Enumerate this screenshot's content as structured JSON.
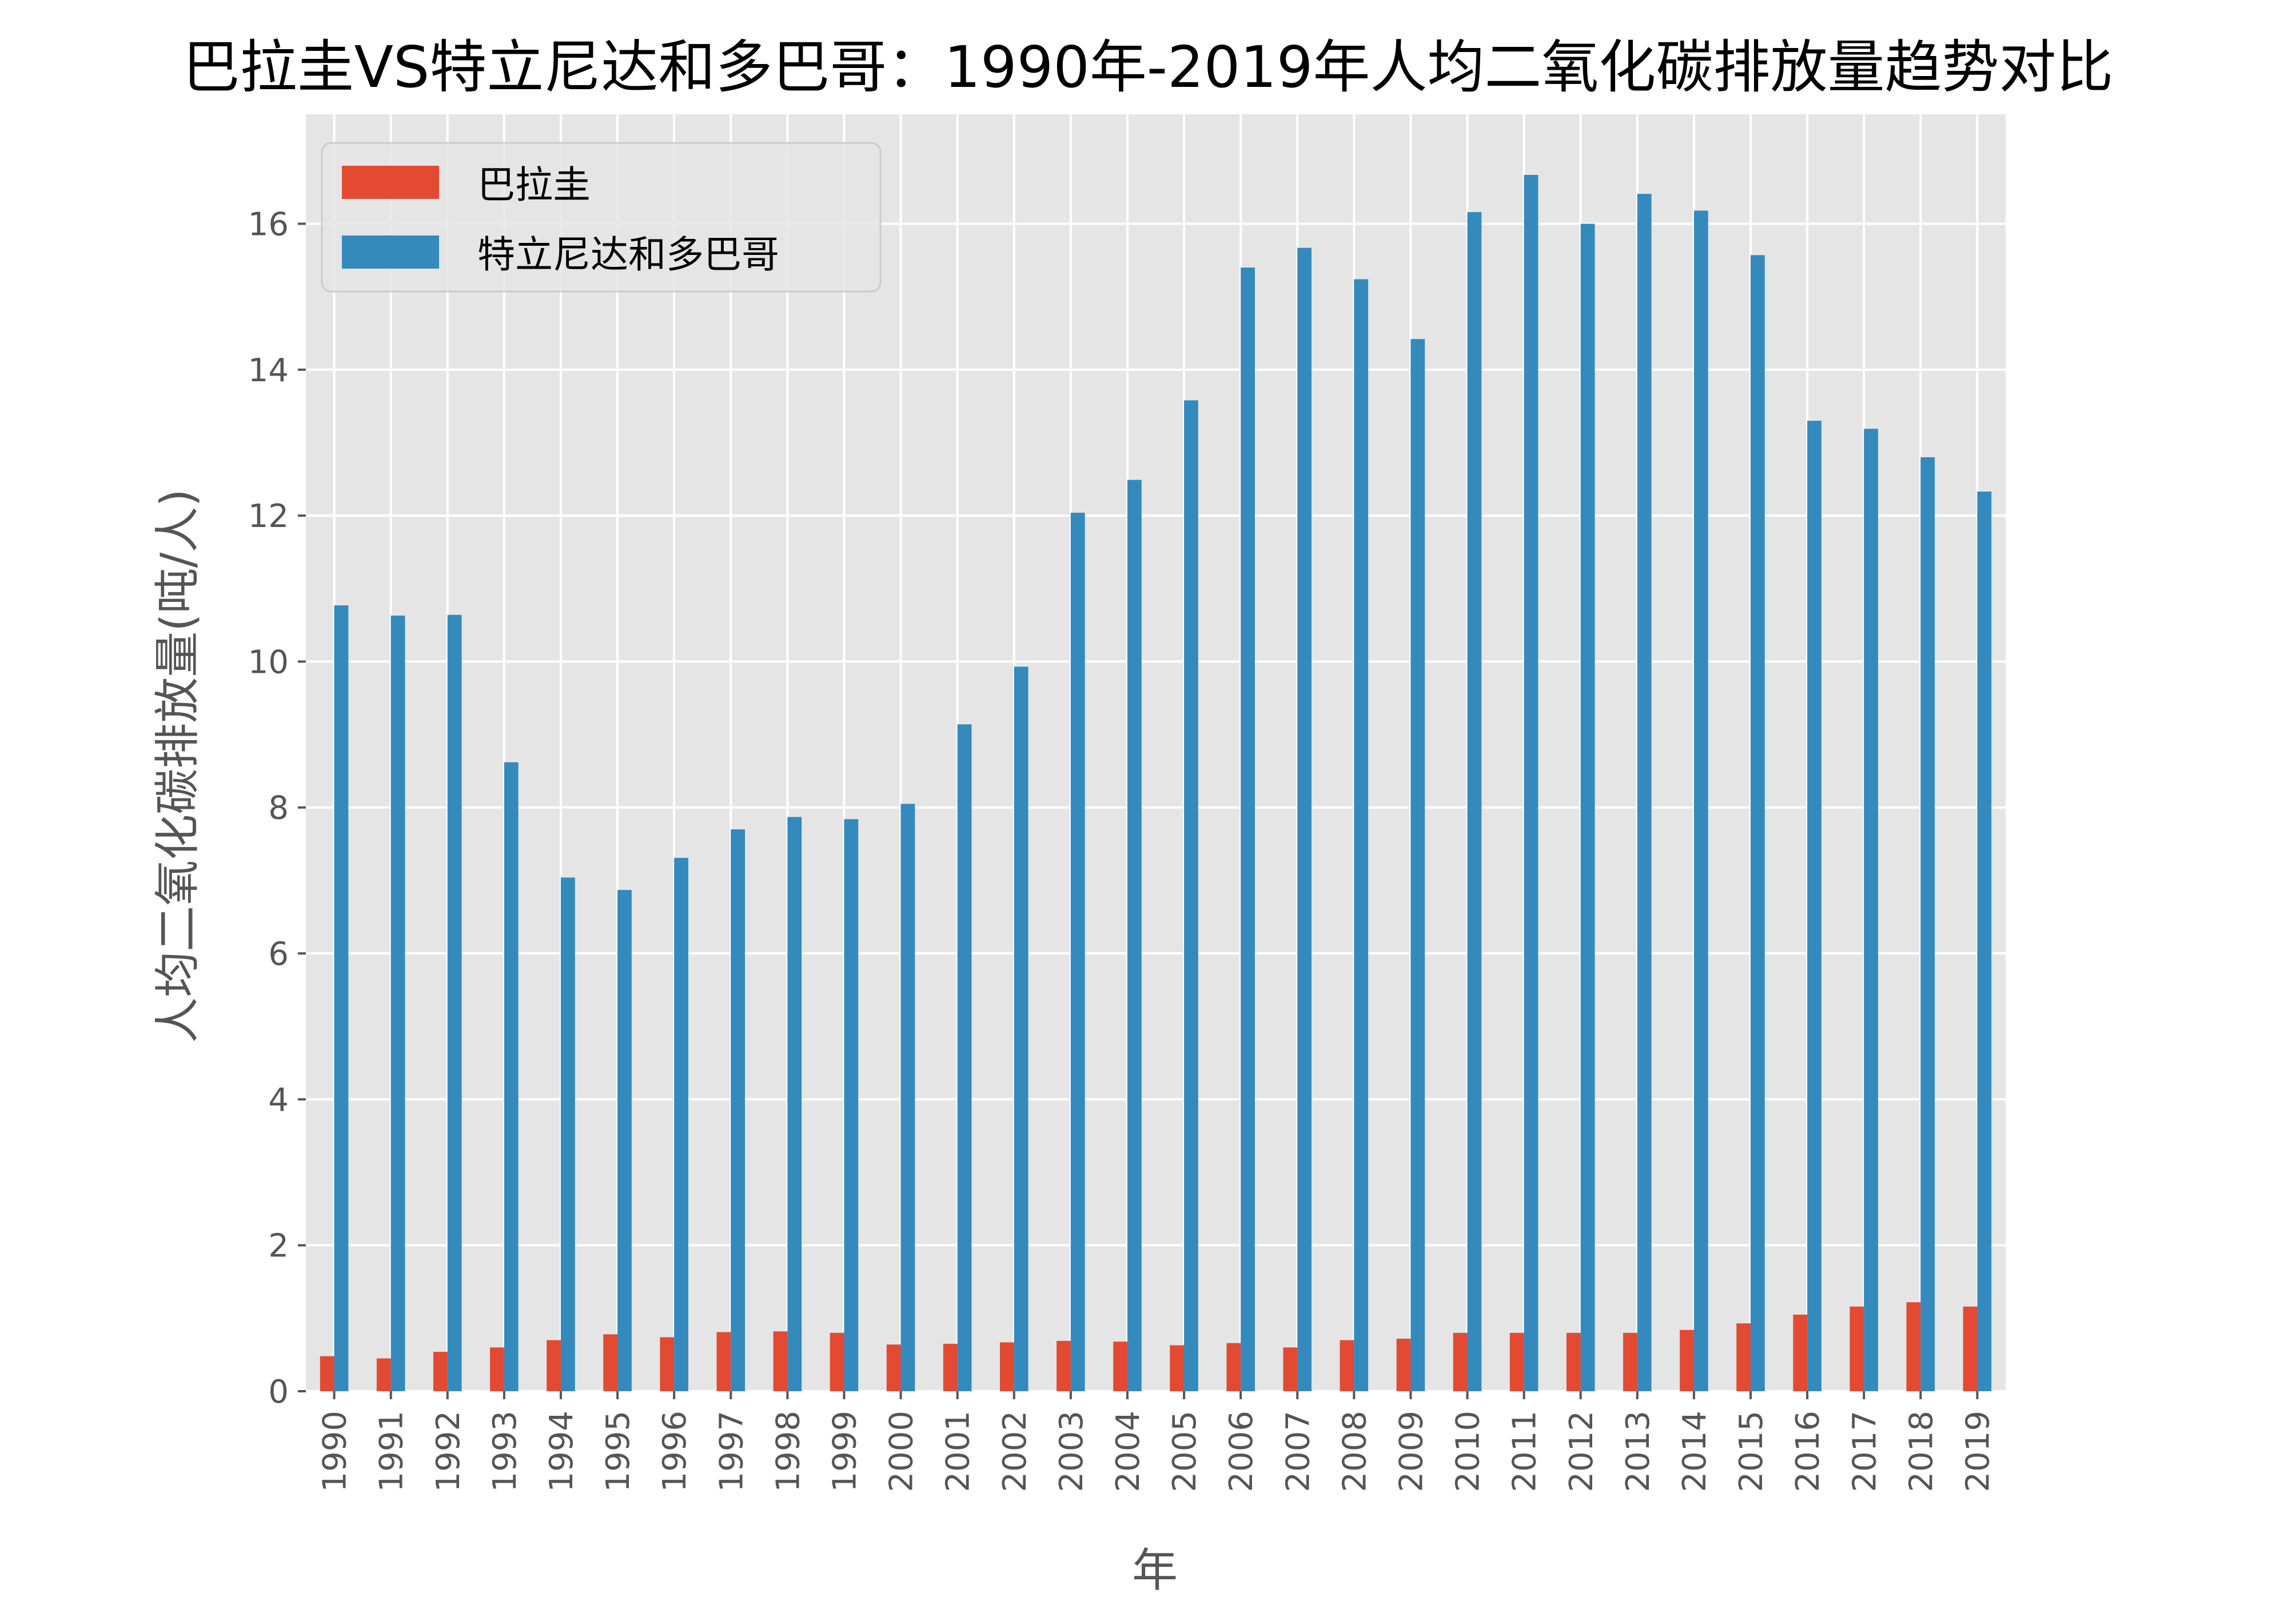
{
  "chart_data": {
    "type": "bar",
    "title": "巴拉圭VS特立尼达和多巴哥：1990年-2019年人均二氧化碳排放量趋势对比",
    "xlabel": "年",
    "ylabel": "人均二氧化碳排放量(吨/人)",
    "ylim": [
      0,
      17.5
    ],
    "yticks": [
      0,
      2,
      4,
      6,
      8,
      10,
      12,
      14,
      16
    ],
    "grid": true,
    "legend_position": "upper-left",
    "background": "#e5e5e5",
    "categories": [
      "1990",
      "1991",
      "1992",
      "1993",
      "1994",
      "1995",
      "1996",
      "1997",
      "1998",
      "1999",
      "2000",
      "2001",
      "2002",
      "2003",
      "2004",
      "2005",
      "2006",
      "2007",
      "2008",
      "2009",
      "2010",
      "2011",
      "2012",
      "2013",
      "2014",
      "2015",
      "2016",
      "2017",
      "2018",
      "2019"
    ],
    "series": [
      {
        "name": "巴拉圭",
        "color": "#e24a33",
        "values": [
          0.48,
          0.45,
          0.54,
          0.6,
          0.7,
          0.78,
          0.74,
          0.81,
          0.82,
          0.8,
          0.64,
          0.65,
          0.67,
          0.69,
          0.68,
          0.63,
          0.66,
          0.6,
          0.7,
          0.72,
          0.8,
          0.8,
          0.8,
          0.8,
          0.84,
          0.93,
          1.05,
          1.16,
          1.22,
          1.16
        ]
      },
      {
        "name": "特立尼达和多巴哥",
        "color": "#348abd",
        "values": [
          10.77,
          10.63,
          10.64,
          8.62,
          7.04,
          6.87,
          7.31,
          7.7,
          7.87,
          7.84,
          8.05,
          9.14,
          9.93,
          12.04,
          12.49,
          13.58,
          15.4,
          15.67,
          15.24,
          14.42,
          16.16,
          16.67,
          16.0,
          16.41,
          16.18,
          15.57,
          13.3,
          13.19,
          12.8,
          12.33
        ]
      }
    ]
  }
}
